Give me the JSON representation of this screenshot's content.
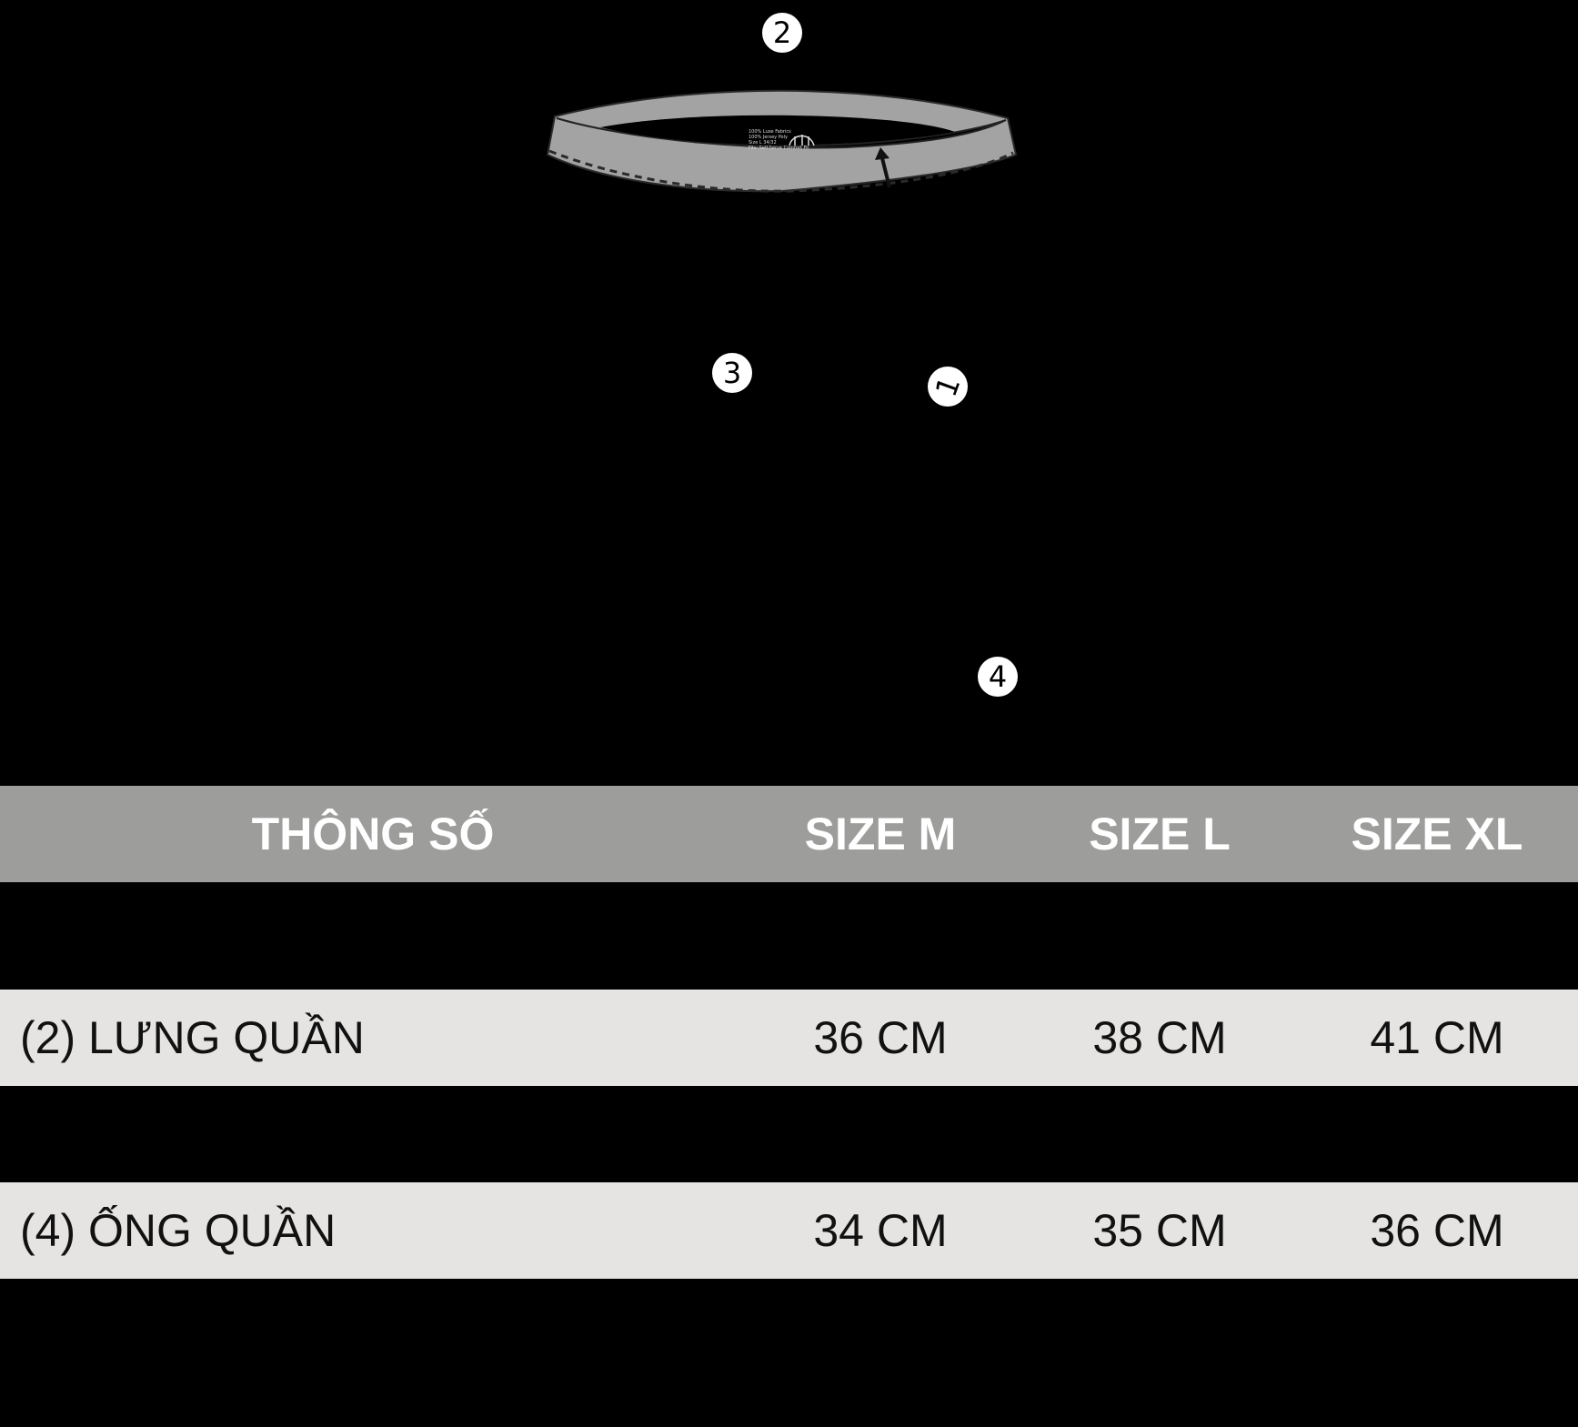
{
  "diagram": {
    "callouts": [
      "1",
      "2",
      "3",
      "4"
    ],
    "waistband_tag_lines": [
      "100% Luxe Fabrics",
      "100% Jersey Poly",
      "Size L 34/32",
      "Fits: Self-Serve Comfort Fit"
    ]
  },
  "table": {
    "headers": [
      "THÔNG SỐ",
      "SIZE M",
      "SIZE L",
      "SIZE XL"
    ],
    "rows": [
      {
        "label": "(2) LƯNG QUẦN",
        "m": "36 CM",
        "l": "38 CM",
        "xl": "41 CM"
      },
      {
        "label": "(4) ỐNG QUẦN",
        "m": "34 CM",
        "l": "35 CM",
        "xl": "36 CM"
      }
    ]
  },
  "colors": {
    "background": "#000000",
    "header_bg": "#9d9d9b",
    "row_bg": "#e5e4e2",
    "badge_bg": "#ffffff"
  }
}
